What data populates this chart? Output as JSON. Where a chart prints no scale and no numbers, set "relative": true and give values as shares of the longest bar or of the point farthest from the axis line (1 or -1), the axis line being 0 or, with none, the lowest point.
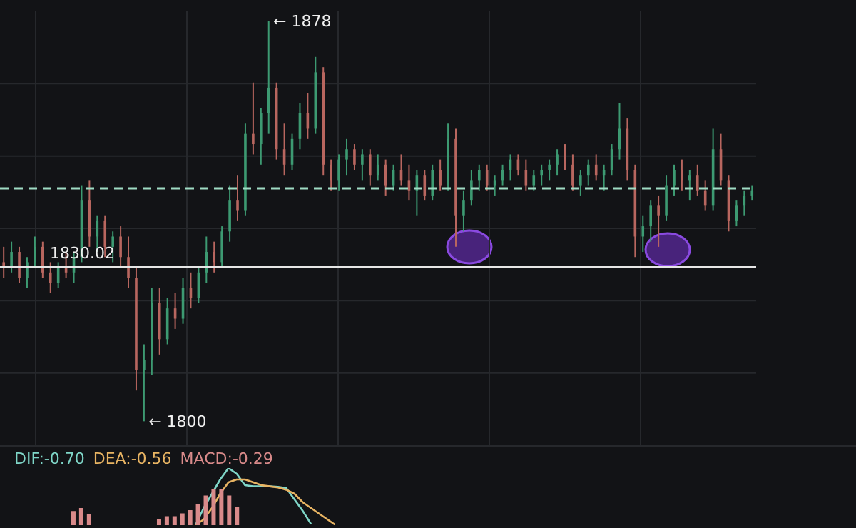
{
  "chart_data": [
    {
      "type": "candlestick",
      "categories": [
        null,
        null,
        null,
        null,
        null,
        null,
        null,
        null,
        null,
        null,
        null,
        null,
        null,
        null,
        null,
        null,
        null,
        null,
        null,
        null,
        null,
        null,
        null,
        null,
        null,
        null,
        null,
        null,
        null,
        null,
        null,
        null,
        null,
        null,
        null,
        null,
        null,
        null,
        null,
        null,
        null,
        null,
        null,
        null,
        null,
        null,
        null,
        null,
        null,
        null,
        null,
        null,
        null,
        null,
        null,
        null,
        null,
        null,
        null,
        null,
        null,
        null,
        null,
        null,
        null,
        null,
        null,
        null,
        null,
        null,
        null,
        null,
        null,
        null,
        null,
        null,
        null,
        null,
        null,
        null,
        null,
        null,
        null,
        null,
        null,
        null,
        null,
        null,
        null,
        null,
        null,
        null,
        null,
        null,
        null,
        null,
        null
      ],
      "ohlc": [
        [
          1831,
          1834,
          1828,
          1830
        ],
        [
          1830,
          1835,
          1829,
          1833
        ],
        [
          1833,
          1834,
          1827,
          1828
        ],
        [
          1828,
          1832,
          1826,
          1831
        ],
        [
          1831,
          1836,
          1830,
          1834
        ],
        [
          1834,
          1835,
          1828,
          1829
        ],
        [
          1829,
          1831,
          1825,
          1827
        ],
        [
          1827,
          1831,
          1826,
          1830
        ],
        [
          1830,
          1833,
          1828,
          1829
        ],
        [
          1829,
          1833,
          1827,
          1832
        ],
        [
          1832,
          1846,
          1831,
          1843
        ],
        [
          1843,
          1847,
          1834,
          1836
        ],
        [
          1836,
          1840,
          1833,
          1839
        ],
        [
          1839,
          1840,
          1832,
          1834
        ],
        [
          1834,
          1837,
          1831,
          1836
        ],
        [
          1836,
          1838,
          1830,
          1832
        ],
        [
          1832,
          1836,
          1826,
          1828
        ],
        [
          1828,
          1830,
          1806,
          1810
        ],
        [
          1810,
          1815,
          1800,
          1812
        ],
        [
          1812,
          1826,
          1809,
          1823
        ],
        [
          1823,
          1826,
          1813,
          1816
        ],
        [
          1816,
          1824,
          1815,
          1822
        ],
        [
          1822,
          1825,
          1818,
          1820
        ],
        [
          1820,
          1828,
          1819,
          1826
        ],
        [
          1826,
          1829,
          1822,
          1824
        ],
        [
          1824,
          1830,
          1823,
          1829
        ],
        [
          1829,
          1836,
          1827,
          1833
        ],
        [
          1833,
          1835,
          1829,
          1831
        ],
        [
          1831,
          1838,
          1830,
          1837
        ],
        [
          1837,
          1846,
          1835,
          1843
        ],
        [
          1843,
          1848,
          1839,
          1841
        ],
        [
          1841,
          1858,
          1840,
          1856
        ],
        [
          1856,
          1866,
          1852,
          1854
        ],
        [
          1854,
          1861,
          1850,
          1860
        ],
        [
          1860,
          1878,
          1856,
          1865
        ],
        [
          1865,
          1866,
          1851,
          1853
        ],
        [
          1853,
          1858,
          1848,
          1850
        ],
        [
          1850,
          1856,
          1849,
          1855
        ],
        [
          1855,
          1862,
          1853,
          1860
        ],
        [
          1860,
          1864,
          1855,
          1857
        ],
        [
          1857,
          1871,
          1856,
          1868
        ],
        [
          1868,
          1869,
          1848,
          1850
        ],
        [
          1850,
          1851,
          1845,
          1847
        ],
        [
          1847,
          1852,
          1845,
          1851
        ],
        [
          1851,
          1855,
          1848,
          1853
        ],
        [
          1853,
          1854,
          1849,
          1850
        ],
        [
          1850,
          1853,
          1847,
          1852
        ],
        [
          1852,
          1853,
          1846,
          1848
        ],
        [
          1848,
          1852,
          1847,
          1850
        ],
        [
          1850,
          1851,
          1844,
          1846
        ],
        [
          1846,
          1850,
          1845,
          1849
        ],
        [
          1849,
          1852,
          1846,
          1847
        ],
        [
          1847,
          1850,
          1843,
          1845
        ],
        [
          1845,
          1849,
          1840,
          1848
        ],
        [
          1848,
          1849,
          1843,
          1844
        ],
        [
          1844,
          1850,
          1843,
          1849
        ],
        [
          1849,
          1851,
          1845,
          1846
        ],
        [
          1846,
          1858,
          1845,
          1855
        ],
        [
          1855,
          1857,
          1834,
          1840
        ],
        [
          1840,
          1845,
          1837,
          1843
        ],
        [
          1843,
          1849,
          1842,
          1847
        ],
        [
          1847,
          1850,
          1845,
          1849
        ],
        [
          1849,
          1850,
          1845,
          1846
        ],
        [
          1846,
          1848,
          1844,
          1847
        ],
        [
          1847,
          1850,
          1846,
          1849
        ],
        [
          1849,
          1852,
          1847,
          1851
        ],
        [
          1851,
          1852,
          1848,
          1849
        ],
        [
          1849,
          1851,
          1845,
          1846
        ],
        [
          1846,
          1849,
          1845,
          1848
        ],
        [
          1848,
          1850,
          1846,
          1849
        ],
        [
          1849,
          1851,
          1847,
          1850
        ],
        [
          1850,
          1853,
          1848,
          1852
        ],
        [
          1852,
          1854,
          1849,
          1850
        ],
        [
          1850,
          1852,
          1845,
          1846
        ],
        [
          1846,
          1849,
          1844,
          1848
        ],
        [
          1848,
          1851,
          1846,
          1850
        ],
        [
          1850,
          1852,
          1847,
          1848
        ],
        [
          1848,
          1850,
          1845,
          1849
        ],
        [
          1849,
          1854,
          1848,
          1853
        ],
        [
          1853,
          1862,
          1851,
          1857
        ],
        [
          1857,
          1859,
          1847,
          1849
        ],
        [
          1849,
          1850,
          1832,
          1836
        ],
        [
          1836,
          1840,
          1833,
          1838
        ],
        [
          1838,
          1843,
          1835,
          1842
        ],
        [
          1842,
          1844,
          1834,
          1840
        ],
        [
          1840,
          1848,
          1839,
          1846
        ],
        [
          1846,
          1850,
          1844,
          1849
        ],
        [
          1849,
          1851,
          1845,
          1847
        ],
        [
          1847,
          1849,
          1843,
          1848
        ],
        [
          1848,
          1850,
          1844,
          1845
        ],
        [
          1845,
          1847,
          1841,
          1842
        ],
        [
          1842,
          1857,
          1841,
          1853
        ],
        [
          1853,
          1856,
          1846,
          1847
        ],
        [
          1847,
          1848,
          1837,
          1839
        ],
        [
          1839,
          1843,
          1838,
          1842
        ],
        [
          1842,
          1845,
          1840,
          1844
        ],
        [
          1844,
          1846,
          1843,
          1845
        ]
      ],
      "colors": [
        "#b8665f",
        "#3d9a72",
        "#b8665f",
        "#3d9a72",
        "#3d9a72",
        "#b8665f",
        "#b8665f",
        "#3d9a72",
        "#b8665f",
        "#3d9a72",
        "#3d9a72",
        "#b8665f",
        "#3d9a72",
        "#b8665f",
        "#3d9a72",
        "#b8665f",
        "#b8665f",
        "#b8665f",
        "#3d9a72",
        "#3d9a72",
        "#b8665f",
        "#3d9a72",
        "#b8665f",
        "#3d9a72",
        "#b8665f",
        "#3d9a72",
        "#3d9a72",
        "#b8665f",
        "#3d9a72",
        "#3d9a72",
        "#b8665f",
        "#3d9a72",
        "#b8665f",
        "#3d9a72",
        "#3d9a72",
        "#b8665f",
        "#b8665f",
        "#3d9a72",
        "#3d9a72",
        "#b8665f",
        "#3d9a72",
        "#b8665f",
        "#b8665f",
        "#3d9a72",
        "#3d9a72",
        "#b8665f",
        "#3d9a72",
        "#b8665f",
        "#3d9a72",
        "#b8665f",
        "#3d9a72",
        "#b8665f",
        "#b8665f",
        "#3d9a72",
        "#b8665f",
        "#3d9a72",
        "#b8665f",
        "#3d9a72",
        "#b8665f",
        "#3d9a72",
        "#3d9a72",
        "#3d9a72",
        "#b8665f",
        "#3d9a72",
        "#3d9a72",
        "#3d9a72",
        "#b8665f",
        "#b8665f",
        "#3d9a72",
        "#3d9a72",
        "#3d9a72",
        "#3d9a72",
        "#b8665f",
        "#b8665f",
        "#3d9a72",
        "#3d9a72",
        "#b8665f",
        "#3d9a72",
        "#3d9a72",
        "#3d9a72",
        "#b8665f",
        "#b8665f",
        "#3d9a72",
        "#3d9a72",
        "#b8665f",
        "#3d9a72",
        "#3d9a72",
        "#b8665f",
        "#3d9a72",
        "#b8665f",
        "#b8665f",
        "#3d9a72",
        "#b8665f",
        "#b8665f",
        "#3d9a72",
        "#3d9a72",
        "#3d9a72"
      ],
      "annotations": [
        "← 1878",
        "← 1800"
      ],
      "ref_lines": [
        {
          "axis": "y",
          "value": 1845.4,
          "color": "#9fdcc4",
          "line_style": "dashed"
        },
        {
          "axis": "y",
          "value": 1830.02,
          "label": "1830.02",
          "color": "#e6e6e6",
          "line_style": "solid"
        }
      ],
      "grid": true,
      "tick_labels": false
    },
    {
      "type": "line",
      "relative": true,
      "categories": [
        null,
        null,
        null,
        null,
        null,
        null,
        null,
        null,
        null,
        null,
        null,
        null,
        null,
        null,
        null,
        null,
        null,
        null
      ],
      "series": [
        {
          "color": "#7fd6c8",
          "values": [
            0,
            0.3,
            0.55,
            0.8,
            1.0,
            0.9,
            0.7,
            0.68,
            0.68,
            0.68,
            0.67,
            0.65,
            0.45,
            0.25,
            0.02,
            null,
            null,
            null
          ]
        },
        {
          "color": "#e8b463",
          "values": [
            0,
            0.1,
            0.3,
            0.55,
            0.75,
            0.8,
            0.8,
            0.75,
            0.7,
            0.68,
            0.66,
            0.62,
            0.55,
            0.4,
            0.3,
            0.2,
            0.1,
            0
          ]
        }
      ],
      "annotations": [
        "DIF:-0.70",
        "DEA:-0.56"
      ],
      "tick_labels": false
    },
    {
      "type": "bar",
      "relative": true,
      "categories": [
        null,
        null,
        null
      ],
      "values": [
        0.83,
        1,
        0.67
      ],
      "color": "#d98a8a",
      "tick_labels": false
    },
    {
      "type": "bar",
      "relative": true,
      "categories": [
        null,
        null,
        null,
        null,
        null,
        null,
        null,
        null,
        null,
        null,
        null
      ],
      "values": [
        0.17,
        0.25,
        0.25,
        0.33,
        0.42,
        0.58,
        0.83,
        1,
        1,
        0.83,
        0.5
      ],
      "color": "#d98a8a",
      "annotations": [
        "MACD:-0.29"
      ],
      "tick_labels": false
    }
  ]
}
